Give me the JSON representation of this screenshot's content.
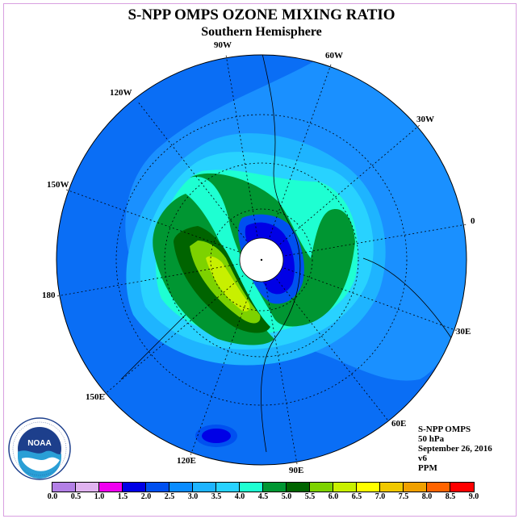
{
  "title": "S-NPP OMPS OZONE MIXING RATIO",
  "subtitle": "Southern Hemisphere",
  "longitude_labels": {
    "lon_90w": "90W",
    "lon_60w": "60W",
    "lon_120w": "120W",
    "lon_30w": "30W",
    "lon_150w": "150W",
    "lon_0": "0",
    "lon_180": "180",
    "lon_30e": "30E",
    "lon_150e": "150E",
    "lon_60e": "60E",
    "lon_120e": "120E",
    "lon_90e": "90E"
  },
  "info": {
    "instrument": "S-NPP OMPS",
    "pressure": "50 hPa",
    "date": "September 26, 2016",
    "version": "v6",
    "units": "PPM"
  },
  "logo": {
    "text": "NOAA",
    "ring_text": "NATIONAL OCEANIC AND ATMOSPHERIC ADMINISTRATION U.S. DEPARTMENT OF COMMERCE"
  },
  "colorbar": {
    "tick_labels": [
      "0.0",
      "0.5",
      "1.0",
      "1.5",
      "2.0",
      "2.5",
      "3.0",
      "3.5",
      "4.0",
      "4.5",
      "5.0",
      "5.5",
      "6.0",
      "6.5",
      "7.0",
      "7.5",
      "8.0",
      "8.5",
      "9.0"
    ],
    "colors": [
      "#b380e6",
      "#e0b3f0",
      "#f000f0",
      "#0000e6",
      "#0050f0",
      "#0a8cff",
      "#1eb4ff",
      "#28d2ff",
      "#1effd2",
      "#009632",
      "#006400",
      "#7dd200",
      "#c8f000",
      "#ffff00",
      "#f0c800",
      "#f0a000",
      "#ff6400",
      "#ff0000",
      "#8c5028"
    ]
  }
}
